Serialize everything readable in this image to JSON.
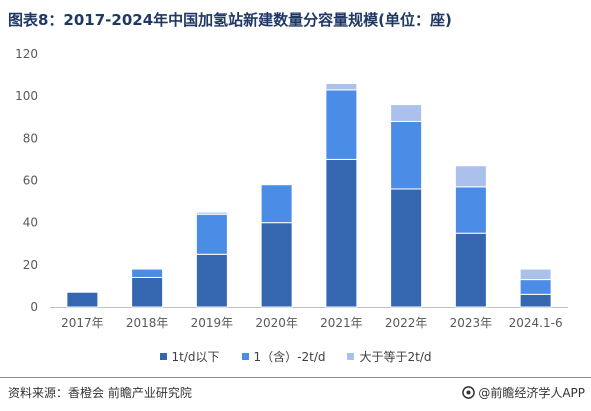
{
  "title": "图表8：2017-2024年中国加氢站新建数量分容量规模(单位：座)",
  "chart_data": {
    "type": "bar",
    "stacked": true,
    "categories": [
      "2017年",
      "2018年",
      "2019年",
      "2020年",
      "2021年",
      "2022年",
      "2023年",
      "2024.1-6"
    ],
    "series": [
      {
        "name": "1t/d以下",
        "color": "#3566b0",
        "values": [
          7,
          14,
          25,
          40,
          70,
          56,
          35,
          6
        ]
      },
      {
        "name": "1（含）-2t/d",
        "color": "#4a8ce6",
        "values": [
          0,
          4,
          19,
          18,
          33,
          32,
          22,
          7
        ]
      },
      {
        "name": "大于等于2t/d",
        "color": "#abc0ea",
        "values": [
          0,
          0,
          1,
          0,
          3,
          8,
          10,
          5
        ]
      }
    ],
    "yticks": [
      "0",
      "20",
      "40",
      "60",
      "80",
      "100",
      "120"
    ],
    "ylim": [
      0,
      120
    ],
    "legend_position": "bottom"
  },
  "footer": {
    "source": "资料来源：香橙会 前瞻产业研究院",
    "brand": "@前瞻经济学人APP"
  }
}
